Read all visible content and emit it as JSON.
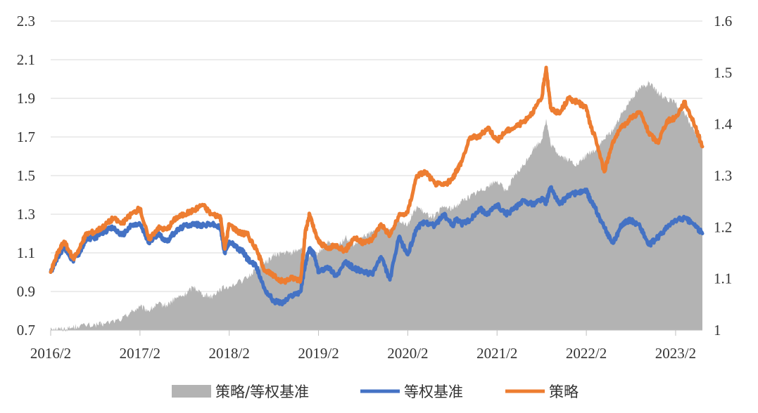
{
  "chart_data": {
    "type": "line",
    "x_ticks": [
      "2016/2",
      "2017/2",
      "2018/2",
      "2019/2",
      "2020/2",
      "2021/2",
      "2022/2",
      "2023/2"
    ],
    "y_left": {
      "ticks": [
        "0.7",
        "0.9",
        "1.1",
        "1.3",
        "1.5",
        "1.7",
        "1.9",
        "2.1",
        "2.3"
      ],
      "range": [
        0.7,
        2.3
      ]
    },
    "y_right": {
      "ticks": [
        "1",
        "1.1",
        "1.2",
        "1.3",
        "1.4",
        "1.5",
        "1.6"
      ],
      "range": [
        1.0,
        1.6
      ]
    },
    "x_range": [
      2016.0,
      2023.3
    ],
    "grid": "horizontal",
    "legend_position": "bottom",
    "series": [
      {
        "name": "策略/等权基准",
        "kind": "area",
        "axis": "right",
        "color": "#b3b3b3",
        "x": [
          2016.0,
          2016.1,
          2016.2,
          2016.3,
          2016.5,
          2016.6,
          2016.8,
          2016.9,
          2017.0,
          2017.1,
          2017.2,
          2017.3,
          2017.4,
          2017.5,
          2017.6,
          2017.7,
          2017.8,
          2017.9,
          2018.0,
          2018.2,
          2018.3,
          2018.4,
          2018.5,
          2018.6,
          2018.7,
          2018.8,
          2018.9,
          2019.0,
          2019.1,
          2019.2,
          2019.3,
          2019.4,
          2019.5,
          2019.6,
          2019.7,
          2019.8,
          2019.9,
          2020.0,
          2020.1,
          2020.2,
          2020.3,
          2020.4,
          2020.5,
          2020.6,
          2020.7,
          2020.8,
          2020.9,
          2021.0,
          2021.1,
          2021.2,
          2021.3,
          2021.4,
          2021.5,
          2021.55,
          2021.6,
          2021.7,
          2021.8,
          2021.9,
          2022.0,
          2022.1,
          2022.2,
          2022.3,
          2022.4,
          2022.5,
          2022.6,
          2022.7,
          2022.8,
          2022.9,
          2023.0,
          2023.1,
          2023.2,
          2023.3
        ],
        "values": [
          1.005,
          1.002,
          1.003,
          1.008,
          1.01,
          1.012,
          1.022,
          1.035,
          1.045,
          1.038,
          1.05,
          1.048,
          1.062,
          1.068,
          1.085,
          1.07,
          1.065,
          1.08,
          1.085,
          1.1,
          1.12,
          1.13,
          1.145,
          1.15,
          1.15,
          1.16,
          1.14,
          1.15,
          1.17,
          1.16,
          1.18,
          1.165,
          1.18,
          1.19,
          1.2,
          1.195,
          1.215,
          1.205,
          1.24,
          1.225,
          1.22,
          1.24,
          1.235,
          1.25,
          1.26,
          1.27,
          1.28,
          1.29,
          1.27,
          1.3,
          1.32,
          1.35,
          1.37,
          1.41,
          1.36,
          1.34,
          1.33,
          1.32,
          1.34,
          1.35,
          1.37,
          1.39,
          1.42,
          1.45,
          1.47,
          1.48,
          1.46,
          1.45,
          1.44,
          1.42,
          1.39,
          1.36
        ]
      },
      {
        "name": "等权基准",
        "kind": "line",
        "axis": "left",
        "color": "#4472c4",
        "x": [
          2016.0,
          2016.08,
          2016.15,
          2016.25,
          2016.32,
          2016.4,
          2016.5,
          2016.6,
          2016.7,
          2016.8,
          2016.9,
          2017.0,
          2017.1,
          2017.2,
          2017.3,
          2017.4,
          2017.5,
          2017.6,
          2017.7,
          2017.8,
          2017.9,
          2017.95,
          2018.0,
          2018.1,
          2018.15,
          2018.2,
          2018.3,
          2018.4,
          2018.5,
          2018.6,
          2018.7,
          2018.8,
          2018.85,
          2018.9,
          2018.95,
          2019.0,
          2019.1,
          2019.2,
          2019.3,
          2019.4,
          2019.5,
          2019.6,
          2019.7,
          2019.8,
          2019.9,
          2020.0,
          2020.1,
          2020.2,
          2020.3,
          2020.4,
          2020.5,
          2020.55,
          2020.6,
          2020.7,
          2020.8,
          2020.9,
          2021.0,
          2021.1,
          2021.2,
          2021.3,
          2021.4,
          2021.5,
          2021.55,
          2021.6,
          2021.7,
          2021.8,
          2021.9,
          2022.0,
          2022.05,
          2022.1,
          2022.2,
          2022.3,
          2022.4,
          2022.5,
          2022.6,
          2022.7,
          2022.8,
          2022.9,
          2023.0,
          2023.1,
          2023.2,
          2023.3
        ],
        "values": [
          1.0,
          1.08,
          1.13,
          1.06,
          1.1,
          1.17,
          1.18,
          1.21,
          1.23,
          1.19,
          1.24,
          1.25,
          1.15,
          1.2,
          1.16,
          1.21,
          1.24,
          1.25,
          1.24,
          1.25,
          1.23,
          1.1,
          1.16,
          1.12,
          1.11,
          1.07,
          1.03,
          0.91,
          0.85,
          0.84,
          0.88,
          0.9,
          1.04,
          1.12,
          1.09,
          1.0,
          1.03,
          0.98,
          1.05,
          1.02,
          1.0,
          0.99,
          1.08,
          0.96,
          1.18,
          1.09,
          1.23,
          1.26,
          1.24,
          1.3,
          1.24,
          1.28,
          1.25,
          1.27,
          1.33,
          1.3,
          1.35,
          1.3,
          1.33,
          1.37,
          1.35,
          1.38,
          1.36,
          1.44,
          1.35,
          1.4,
          1.41,
          1.42,
          1.37,
          1.33,
          1.23,
          1.15,
          1.25,
          1.27,
          1.24,
          1.14,
          1.18,
          1.23,
          1.27,
          1.28,
          1.25,
          1.2
        ]
      },
      {
        "name": "策略",
        "kind": "line",
        "axis": "left",
        "color": "#ed7d31",
        "x": [
          2016.0,
          2016.08,
          2016.15,
          2016.25,
          2016.32,
          2016.4,
          2016.5,
          2016.6,
          2016.7,
          2016.8,
          2016.9,
          2017.0,
          2017.1,
          2017.2,
          2017.3,
          2017.4,
          2017.5,
          2017.6,
          2017.7,
          2017.8,
          2017.9,
          2017.95,
          2018.0,
          2018.1,
          2018.15,
          2018.2,
          2018.3,
          2018.4,
          2018.5,
          2018.6,
          2018.7,
          2018.8,
          2018.85,
          2018.9,
          2018.95,
          2019.0,
          2019.1,
          2019.2,
          2019.3,
          2019.4,
          2019.5,
          2019.6,
          2019.7,
          2019.8,
          2019.9,
          2020.0,
          2020.1,
          2020.2,
          2020.3,
          2020.4,
          2020.5,
          2020.55,
          2020.6,
          2020.7,
          2020.8,
          2020.9,
          2021.0,
          2021.1,
          2021.2,
          2021.3,
          2021.4,
          2021.5,
          2021.55,
          2021.6,
          2021.7,
          2021.8,
          2021.9,
          2022.0,
          2022.05,
          2022.1,
          2022.2,
          2022.3,
          2022.4,
          2022.5,
          2022.6,
          2022.7,
          2022.8,
          2022.9,
          2023.0,
          2023.1,
          2023.2,
          2023.3
        ],
        "values": [
          1.0,
          1.1,
          1.16,
          1.07,
          1.12,
          1.2,
          1.21,
          1.24,
          1.28,
          1.25,
          1.3,
          1.33,
          1.17,
          1.23,
          1.22,
          1.28,
          1.3,
          1.32,
          1.35,
          1.3,
          1.29,
          1.12,
          1.25,
          1.21,
          1.2,
          1.2,
          1.12,
          1.01,
          0.98,
          0.95,
          0.97,
          0.96,
          1.2,
          1.3,
          1.22,
          1.16,
          1.12,
          1.14,
          1.11,
          1.18,
          1.15,
          1.17,
          1.25,
          1.19,
          1.29,
          1.31,
          1.5,
          1.52,
          1.46,
          1.45,
          1.48,
          1.53,
          1.57,
          1.7,
          1.7,
          1.75,
          1.68,
          1.73,
          1.75,
          1.78,
          1.83,
          1.9,
          2.06,
          1.85,
          1.82,
          1.9,
          1.88,
          1.85,
          1.75,
          1.7,
          1.52,
          1.68,
          1.75,
          1.8,
          1.83,
          1.72,
          1.67,
          1.78,
          1.8,
          1.88,
          1.78,
          1.65
        ]
      }
    ]
  }
}
